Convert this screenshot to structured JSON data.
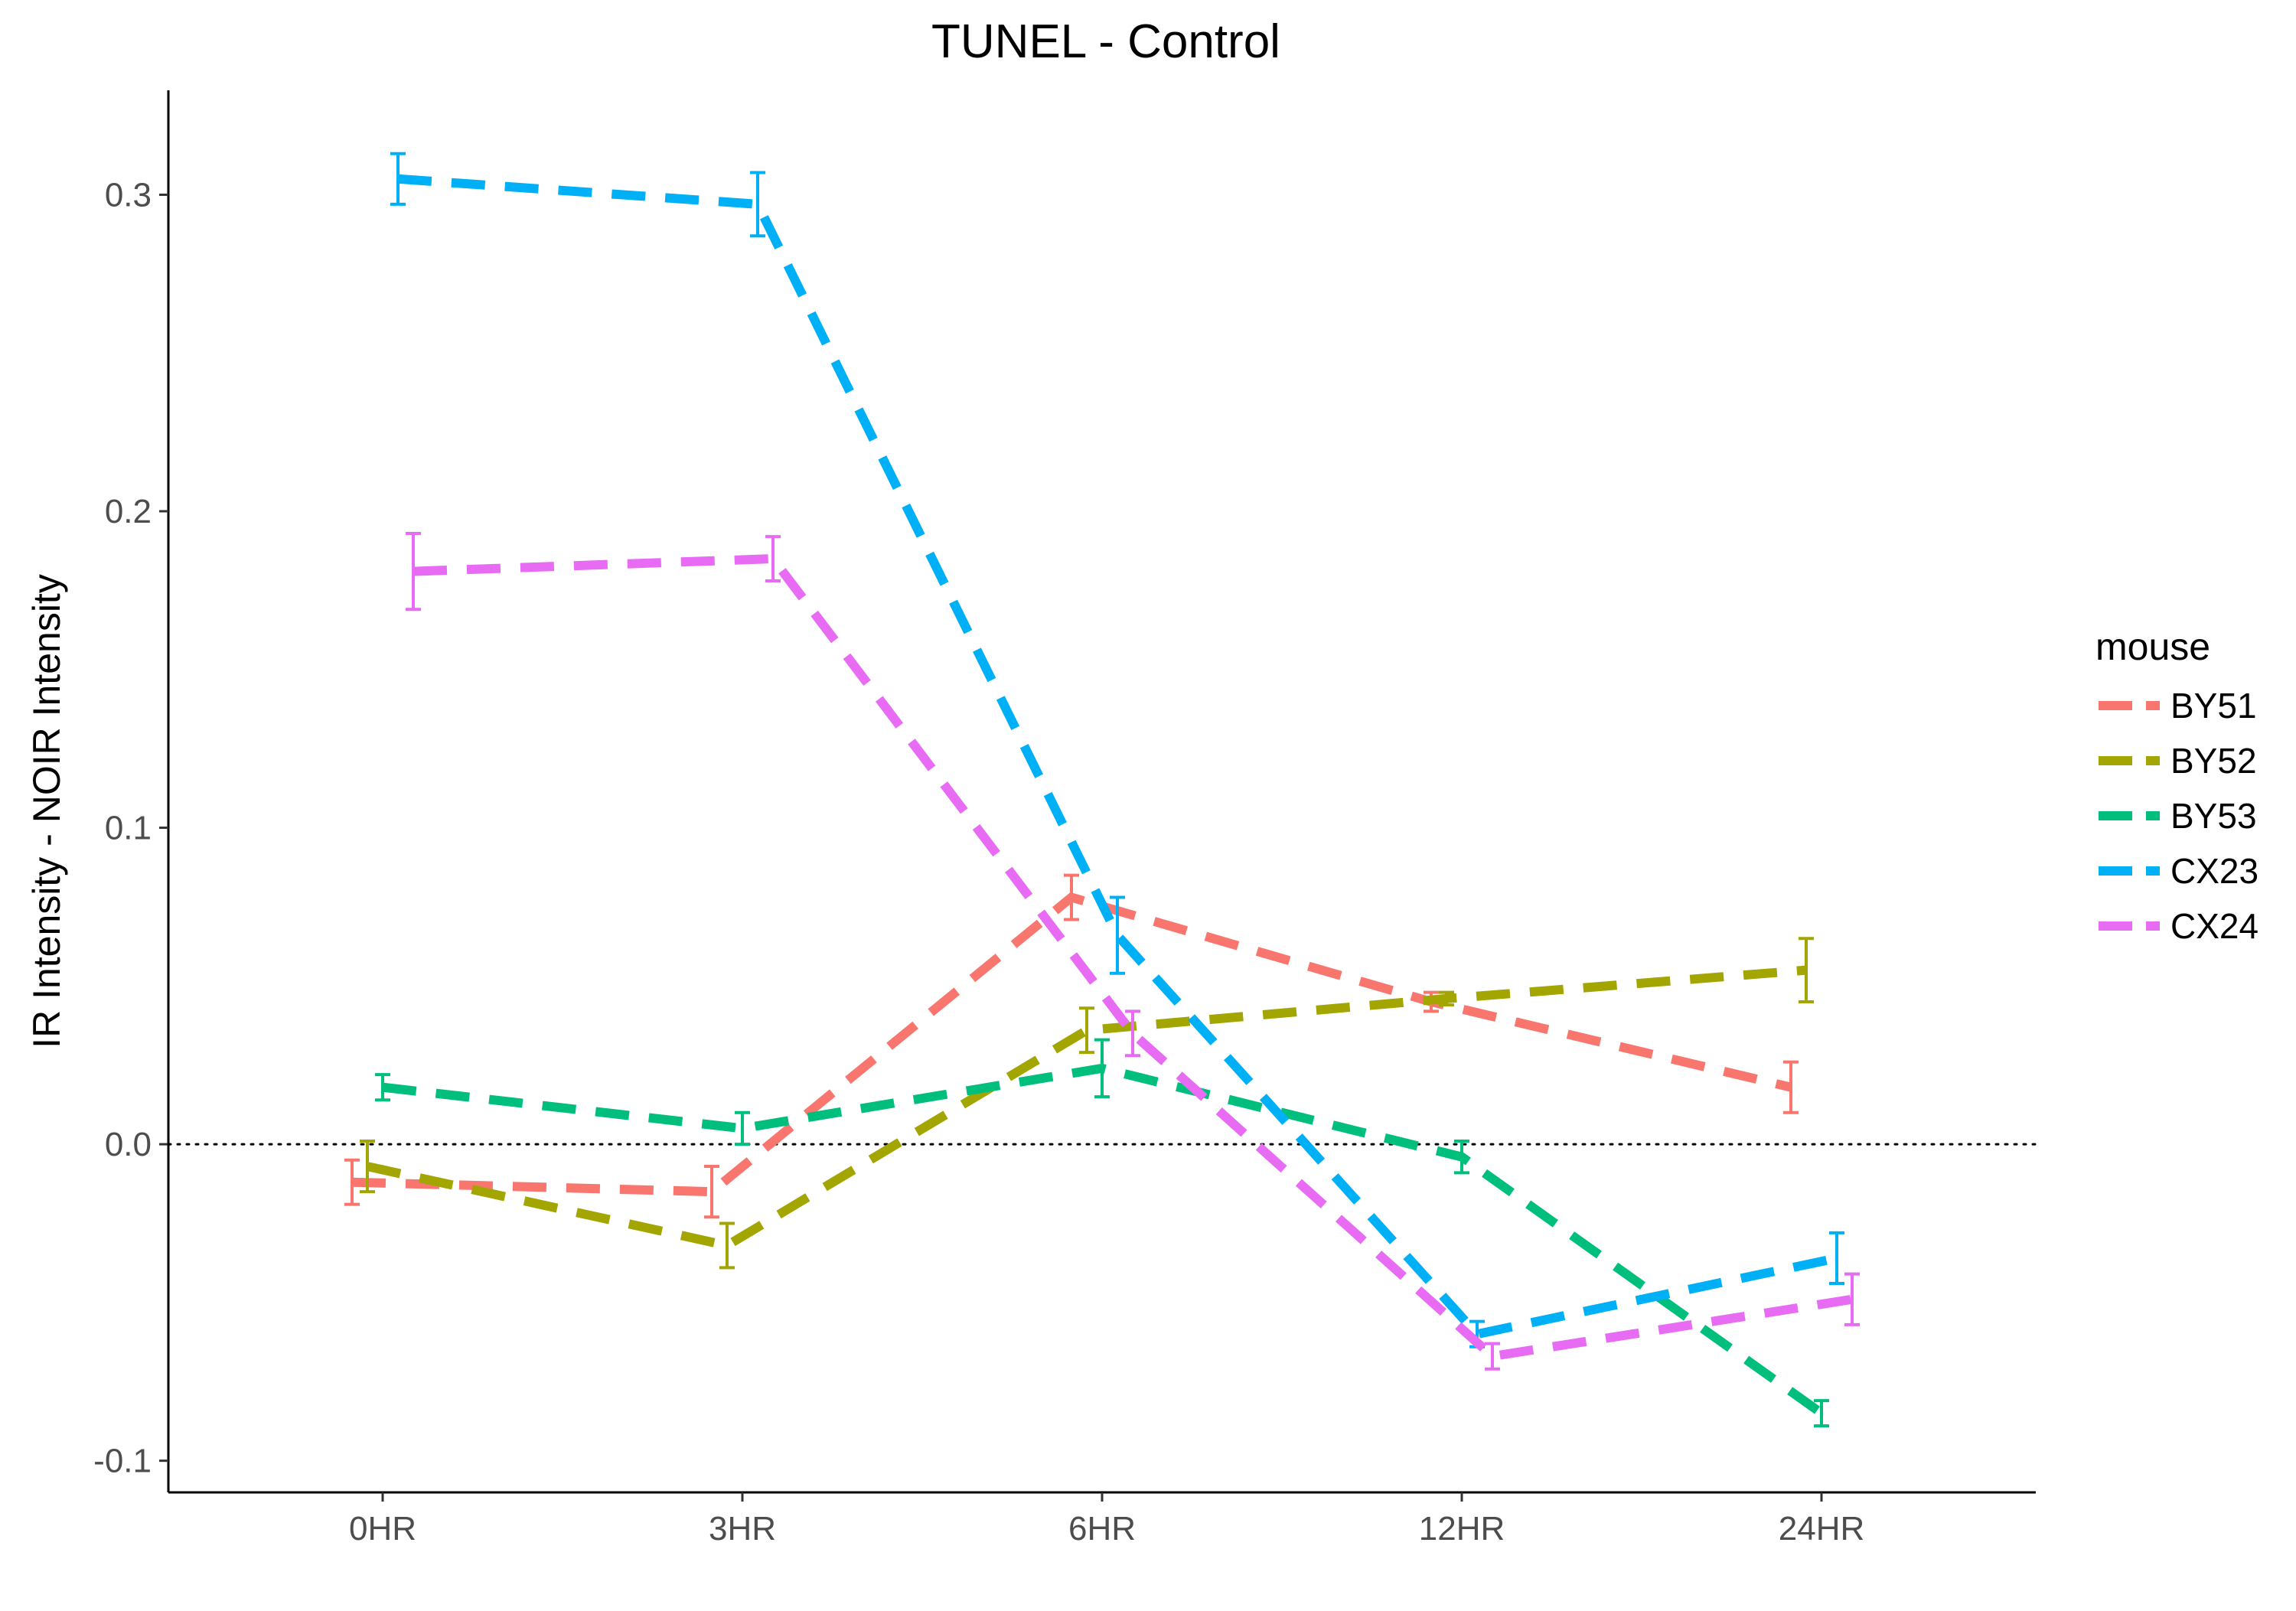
{
  "chart_data": {
    "type": "line",
    "title": "TUNEL - Control",
    "xlabel": "",
    "ylabel": "IR Intensity - NOIR Intensity",
    "categories": [
      "0HR",
      "3HR",
      "6HR",
      "12HR",
      "24HR"
    ],
    "y_ticks": [
      "-0.1",
      "0.0",
      "0.1",
      "0.2",
      "0.3"
    ],
    "ylim": [
      -0.11,
      0.333
    ],
    "reference_line": 0.0,
    "grid": false,
    "line_style": "dashed",
    "error_bars": true,
    "legend": {
      "title": "mouse",
      "placement": "right"
    },
    "series": [
      {
        "name": "BY51",
        "color": "#F8766D",
        "values": [
          -0.012,
          -0.015,
          0.078,
          0.045,
          0.018
        ],
        "errors": [
          0.007,
          0.008,
          0.007,
          0.003,
          0.008
        ]
      },
      {
        "name": "BY52",
        "color": "#A3A500",
        "values": [
          -0.007,
          -0.032,
          0.036,
          0.046,
          0.055
        ],
        "errors": [
          0.008,
          0.007,
          0.007,
          0.002,
          0.01
        ]
      },
      {
        "name": "BY53",
        "color": "#00BF7D",
        "values": [
          0.018,
          0.005,
          0.024,
          -0.004,
          -0.085
        ],
        "errors": [
          0.004,
          0.005,
          0.009,
          0.005,
          0.004
        ]
      },
      {
        "name": "CX23",
        "color": "#00B0F6",
        "values": [
          0.305,
          0.297,
          0.066,
          -0.06,
          -0.036
        ],
        "errors": [
          0.008,
          0.01,
          0.012,
          0.004,
          0.008
        ]
      },
      {
        "name": "CX24",
        "color": "#E76BF3",
        "values": [
          0.181,
          0.185,
          0.035,
          -0.067,
          -0.049
        ],
        "errors": [
          0.012,
          0.007,
          0.007,
          0.004,
          0.008
        ]
      }
    ]
  }
}
